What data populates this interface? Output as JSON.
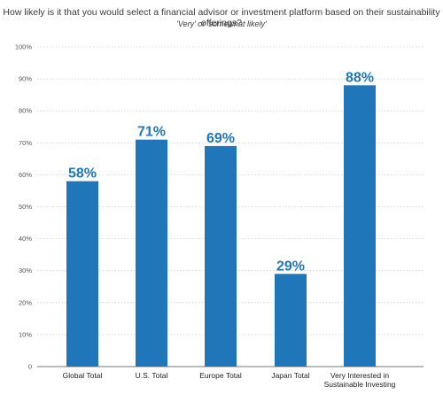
{
  "title": "How likely is it that you would select a financial advisor or investment platform based on their sustainability offerings?",
  "subtitle": "'Very' or 'somewhat likely'",
  "colors": {
    "bar": "#1f77b9",
    "label": "#1f77b9",
    "grid": "#cfcfcf",
    "axis": "#777777"
  },
  "chart_data": {
    "type": "bar",
    "title": "How likely is it that you would select a financial advisor or investment platform based on their sustainability offerings?",
    "subtitle": "'Very' or 'somewhat likely'",
    "categories": [
      "Global Total",
      "U.S. Total",
      "Europe Total",
      "Japan Total",
      "Very Interested in Sustainable Investing"
    ],
    "category_lines": [
      [
        "Global Total"
      ],
      [
        "U.S. Total"
      ],
      [
        "Europe Total"
      ],
      [
        "Japan Total"
      ],
      [
        "Very Interested in",
        "Sustainable Investing"
      ]
    ],
    "values": [
      58,
      71,
      69,
      29,
      88
    ],
    "data_labels": [
      "58%",
      "71%",
      "69%",
      "29%",
      "88%"
    ],
    "ylim": [
      0,
      100
    ],
    "yticks": [
      0,
      10,
      20,
      30,
      40,
      50,
      60,
      70,
      80,
      90,
      100
    ],
    "ytick_labels": [
      "0",
      "10%",
      "20%",
      "30%",
      "40%",
      "50%",
      "60%",
      "70%",
      "80%",
      "90%",
      "100%"
    ],
    "grid": true,
    "xlabel": "",
    "ylabel": ""
  }
}
